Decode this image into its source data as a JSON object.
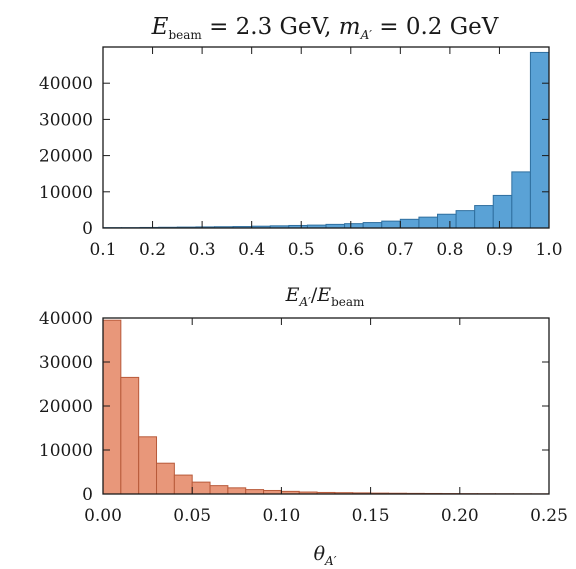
{
  "figure_title": {
    "ebeam_sym": "E",
    "ebeam_sub": "beam",
    "ebeam_val": " = 2.3 GeV, ",
    "mass_sym": "m",
    "mass_sub": "A′",
    "mass_val": " = 0.2 GeV"
  },
  "chart_data": [
    {
      "type": "histogram",
      "title": "E_beam = 2.3 GeV, m_A′ = 0.2 GeV",
      "xlabel": "E_A′/E_beam",
      "xlabel_parts": {
        "num_sym": "E",
        "num_sub": "A′",
        "slash": "/",
        "den_sym": "E",
        "den_sub": "beam"
      },
      "ylabel": "",
      "color": "#5aa2d6",
      "edge_color": "#2f6f9f",
      "xlim": [
        0.1,
        1.0
      ],
      "ylim": [
        0,
        50000
      ],
      "xticks": [
        0.1,
        0.2,
        0.3,
        0.4,
        0.5,
        0.6,
        0.7,
        0.8,
        0.9,
        1.0
      ],
      "xtick_labels": [
        "0.1",
        "0.2",
        "0.3",
        "0.4",
        "0.5",
        "0.6",
        "0.7",
        "0.8",
        "0.9",
        "1.0"
      ],
      "yticks": [
        0,
        10000,
        20000,
        30000,
        40000
      ],
      "ytick_labels": [
        "0",
        "10000",
        "20000",
        "30000",
        "40000"
      ],
      "bin_edges": [
        0.1,
        0.1375,
        0.175,
        0.2125,
        0.25,
        0.2875,
        0.325,
        0.3625,
        0.4,
        0.4375,
        0.475,
        0.5125,
        0.55,
        0.5875,
        0.625,
        0.6625,
        0.7,
        0.7375,
        0.775,
        0.8125,
        0.85,
        0.8875,
        0.925,
        0.9625,
        1.0
      ],
      "values": [
        100,
        100,
        150,
        200,
        250,
        300,
        350,
        400,
        500,
        600,
        700,
        800,
        1000,
        1200,
        1500,
        1900,
        2400,
        3000,
        3800,
        4800,
        6200,
        9000,
        15500,
        48500
      ]
    },
    {
      "type": "histogram",
      "title": "",
      "xlabel": "θ_A′",
      "xlabel_parts": {
        "sym": "θ",
        "sub": "A′"
      },
      "ylabel": "",
      "color": "#e8977a",
      "edge_color": "#b85a3a",
      "xlim": [
        0.0,
        0.25
      ],
      "ylim": [
        0,
        40000
      ],
      "xticks": [
        0.0,
        0.05,
        0.1,
        0.15,
        0.2,
        0.25
      ],
      "xtick_labels": [
        "0.00",
        "0.05",
        "0.10",
        "0.15",
        "0.20",
        "0.25"
      ],
      "yticks": [
        0,
        10000,
        20000,
        30000,
        40000
      ],
      "ytick_labels": [
        "0",
        "10000",
        "20000",
        "30000",
        "40000"
      ],
      "bin_edges": [
        0.0,
        0.01,
        0.02,
        0.03,
        0.04,
        0.05,
        0.06,
        0.07,
        0.08,
        0.09,
        0.1,
        0.11,
        0.12,
        0.13,
        0.14,
        0.15,
        0.16,
        0.17,
        0.18,
        0.19,
        0.2,
        0.21,
        0.22,
        0.23,
        0.24,
        0.25
      ],
      "values": [
        39500,
        26500,
        13000,
        7000,
        4300,
        2700,
        1900,
        1400,
        1000,
        800,
        600,
        450,
        350,
        300,
        250,
        200,
        170,
        140,
        120,
        100,
        80,
        70,
        60,
        50,
        40
      ]
    }
  ]
}
